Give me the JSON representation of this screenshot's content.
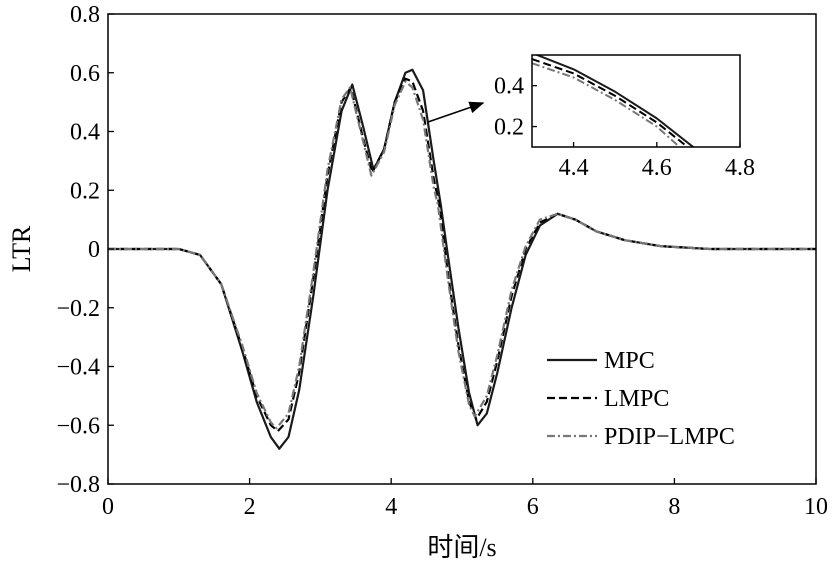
{
  "chart_data": [
    {
      "type": "line",
      "xlabel": "时间/s",
      "ylabel": "LTR",
      "xlim": [
        0,
        10
      ],
      "ylim": [
        -0.8,
        0.8
      ],
      "xticks": [
        0,
        2,
        4,
        6,
        8,
        10
      ],
      "xtick_labels": [
        "0",
        "2",
        "4",
        "6",
        "8",
        "10"
      ],
      "yticks": [
        0.8,
        0.6,
        0.4,
        0.2,
        0,
        -0.2,
        -0.4,
        -0.6,
        -0.8
      ],
      "ytick_labels": [
        "0.8",
        "0.6",
        "0.4",
        "0.2",
        "0",
        "−0.2",
        "−0.4",
        "−0.6",
        "−0.8"
      ],
      "legend_position": "bottom-right",
      "grid": false,
      "series": [
        {
          "name": "MPC",
          "style": "solid",
          "color": "#1a1a1a",
          "x": [
            0,
            1.0,
            1.3,
            1.6,
            1.9,
            2.1,
            2.3,
            2.42,
            2.55,
            2.7,
            2.9,
            3.1,
            3.3,
            3.45,
            3.6,
            3.75,
            3.9,
            4.05,
            4.2,
            4.3,
            4.45,
            4.6,
            4.7,
            4.8,
            4.95,
            5.1,
            5.22,
            5.35,
            5.5,
            5.7,
            5.9,
            6.1,
            6.35,
            6.6,
            6.9,
            7.3,
            7.8,
            8.5,
            10
          ],
          "y": [
            0,
            0,
            -0.02,
            -0.12,
            -0.35,
            -0.52,
            -0.64,
            -0.68,
            -0.64,
            -0.48,
            -0.16,
            0.2,
            0.47,
            0.56,
            0.42,
            0.27,
            0.34,
            0.5,
            0.6,
            0.61,
            0.54,
            0.3,
            0.15,
            -0.02,
            -0.27,
            -0.49,
            -0.6,
            -0.56,
            -0.42,
            -0.2,
            -0.02,
            0.08,
            0.12,
            0.1,
            0.06,
            0.03,
            0.01,
            0,
            0
          ]
        },
        {
          "name": "LMPC",
          "style": "dashed",
          "color": "#000000",
          "x": [
            0,
            1.0,
            1.3,
            1.6,
            1.9,
            2.1,
            2.3,
            2.4,
            2.55,
            2.7,
            2.9,
            3.1,
            3.3,
            3.43,
            3.6,
            3.73,
            3.9,
            4.05,
            4.2,
            4.3,
            4.45,
            4.6,
            4.68,
            4.8,
            4.95,
            5.1,
            5.2,
            5.35,
            5.5,
            5.7,
            5.9,
            6.1,
            6.35,
            6.6,
            6.9,
            7.3,
            7.8,
            8.5,
            10
          ],
          "y": [
            0,
            0,
            -0.02,
            -0.12,
            -0.34,
            -0.5,
            -0.6,
            -0.62,
            -0.58,
            -0.42,
            -0.1,
            0.25,
            0.5,
            0.55,
            0.38,
            0.26,
            0.34,
            0.5,
            0.58,
            0.57,
            0.47,
            0.24,
            0.15,
            -0.08,
            -0.33,
            -0.52,
            -0.58,
            -0.52,
            -0.38,
            -0.16,
            0.0,
            0.09,
            0.12,
            0.1,
            0.06,
            0.03,
            0.01,
            0,
            0
          ]
        },
        {
          "name": "PDIP−LMPC",
          "style": "dashdot",
          "color": "#777777",
          "x": [
            0,
            1.0,
            1.3,
            1.6,
            1.9,
            2.1,
            2.3,
            2.38,
            2.55,
            2.7,
            2.9,
            3.1,
            3.3,
            3.42,
            3.6,
            3.72,
            3.9,
            4.05,
            4.2,
            4.3,
            4.45,
            4.6,
            4.66,
            4.8,
            4.95,
            5.1,
            5.18,
            5.35,
            5.5,
            5.7,
            5.9,
            6.1,
            6.35,
            6.6,
            6.9,
            7.3,
            7.8,
            8.5,
            10
          ],
          "y": [
            0,
            0,
            -0.02,
            -0.12,
            -0.33,
            -0.49,
            -0.59,
            -0.61,
            -0.56,
            -0.4,
            -0.08,
            0.27,
            0.51,
            0.55,
            0.37,
            0.25,
            0.33,
            0.49,
            0.57,
            0.55,
            0.44,
            0.21,
            0.15,
            -0.1,
            -0.35,
            -0.53,
            -0.57,
            -0.5,
            -0.36,
            -0.14,
            0.01,
            0.1,
            0.12,
            0.1,
            0.06,
            0.03,
            0.01,
            0,
            0
          ]
        }
      ]
    },
    {
      "type": "line",
      "inset": true,
      "xlim": [
        4.3,
        4.8
      ],
      "ylim": [
        0.1,
        0.55
      ],
      "xticks": [
        4.4,
        4.6,
        4.8
      ],
      "xtick_labels": [
        "4.4",
        "4.6",
        "4.8"
      ],
      "yticks": [
        0.4,
        0.2
      ],
      "ytick_labels": [
        "0.4",
        "0.2"
      ],
      "series": [
        {
          "name": "MPC",
          "style": "solid",
          "color": "#1a1a1a",
          "x": [
            4.3,
            4.4,
            4.5,
            4.6,
            4.7
          ],
          "y": [
            0.56,
            0.48,
            0.37,
            0.24,
            0.08
          ]
        },
        {
          "name": "LMPC",
          "style": "dashed",
          "color": "#000000",
          "x": [
            4.3,
            4.4,
            4.5,
            4.6,
            4.68
          ],
          "y": [
            0.53,
            0.46,
            0.35,
            0.22,
            0.09
          ]
        },
        {
          "name": "PDIP−LMPC",
          "style": "dashdot",
          "color": "#777777",
          "x": [
            4.3,
            4.4,
            4.5,
            4.6,
            4.66
          ],
          "y": [
            0.51,
            0.44,
            0.33,
            0.2,
            0.09
          ]
        }
      ]
    }
  ]
}
